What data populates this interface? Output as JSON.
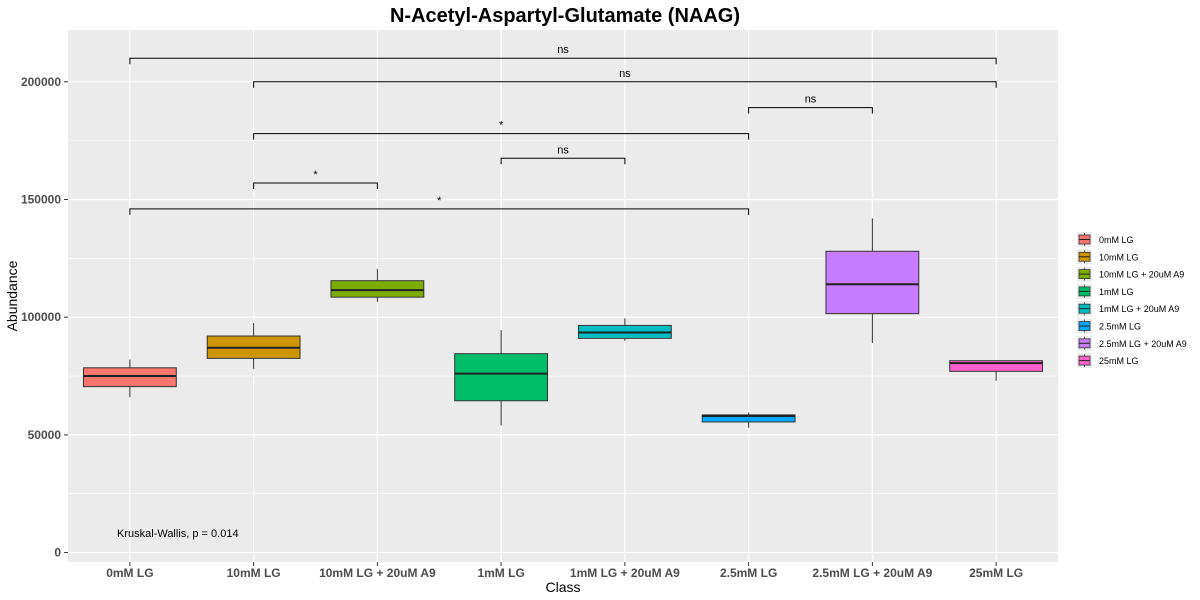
{
  "chart_data": {
    "type": "box",
    "title": "N-Acetyl-Aspartyl-Glutamate (NAAG)",
    "xlabel": "Class",
    "ylabel": "Abundance",
    "ylim": [
      -4000,
      222000
    ],
    "yticks": [
      0,
      50000,
      100000,
      150000,
      200000
    ],
    "ytick_labels": [
      "0",
      "50000",
      "100000",
      "150000",
      "200000"
    ],
    "categories": [
      "0mM LG",
      "10mM LG",
      "10mM LG + 20uM A9",
      "1mM LG",
      "1mM LG + 20uM A9",
      "2.5mM LG",
      "2.5mM LG + 20uM A9",
      "25mM LG"
    ],
    "boxes": [
      {
        "category": "0mM LG",
        "color": "#F8766D",
        "whisker_low": 66000,
        "q1": 70500,
        "median": 75000,
        "q3": 78500,
        "whisker_high": 82000
      },
      {
        "category": "10mM LG",
        "color": "#CD9600",
        "whisker_low": 78000,
        "q1": 82500,
        "median": 87000,
        "q3": 92000,
        "whisker_high": 97500
      },
      {
        "category": "10mM LG + 20uM A9",
        "color": "#7CAE00",
        "whisker_low": 106500,
        "q1": 108500,
        "median": 111500,
        "q3": 115500,
        "whisker_high": 120500
      },
      {
        "category": "1mM LG",
        "color": "#00BE67",
        "whisker_low": 54000,
        "q1": 64500,
        "median": 76000,
        "q3": 84500,
        "whisker_high": 94500
      },
      {
        "category": "1mM LG + 20uM A9",
        "color": "#00BFC4",
        "whisker_low": 90000,
        "q1": 91000,
        "median": 93500,
        "q3": 96500,
        "whisker_high": 99500
      },
      {
        "category": "2.5mM LG",
        "color": "#00A9FF",
        "whisker_low": 53000,
        "q1": 55500,
        "median": 58000,
        "q3": 58500,
        "whisker_high": 59500
      },
      {
        "category": "2.5mM LG + 20uM A9",
        "color": "#C77CFF",
        "whisker_low": 89000,
        "q1": 101500,
        "median": 114000,
        "q3": 128000,
        "whisker_high": 142000
      },
      {
        "category": "25mM LG",
        "color": "#FF61CC",
        "whisker_low": 73000,
        "q1": 77000,
        "median": 80500,
        "q3": 81500,
        "whisker_high": 81500
      }
    ],
    "comparisons": [
      {
        "from": 0,
        "to": 7,
        "y": 210000,
        "label": "ns"
      },
      {
        "from": 1,
        "to": 7,
        "y": 200000,
        "label": "ns"
      },
      {
        "from": 5,
        "to": 6,
        "y": 189000,
        "label": "ns"
      },
      {
        "from": 1,
        "to": 5,
        "y": 178000,
        "label": "*"
      },
      {
        "from": 3,
        "to": 4,
        "y": 167500,
        "label": "ns"
      },
      {
        "from": 1,
        "to": 2,
        "y": 157000,
        "label": "*"
      },
      {
        "from": 0,
        "to": 5,
        "y": 146000,
        "label": "*"
      }
    ],
    "annotation": "Kruskal-Wallis, p = 0.014",
    "legend": {
      "position": "right",
      "entries": [
        {
          "label": "0mM LG",
          "color": "#F8766D"
        },
        {
          "label": "10mM LG",
          "color": "#CD9600"
        },
        {
          "label": "10mM LG + 20uM A9",
          "color": "#7CAE00"
        },
        {
          "label": "1mM LG",
          "color": "#00BE67"
        },
        {
          "label": "1mM LG + 20uM A9",
          "color": "#00BFC4"
        },
        {
          "label": "2.5mM LG",
          "color": "#00A9FF"
        },
        {
          "label": "2.5mM LG + 20uM A9",
          "color": "#C77CFF"
        },
        {
          "label": "25mM LG",
          "color": "#FF61CC"
        }
      ]
    },
    "panel_background": "#EBEBEB",
    "grid": true
  }
}
